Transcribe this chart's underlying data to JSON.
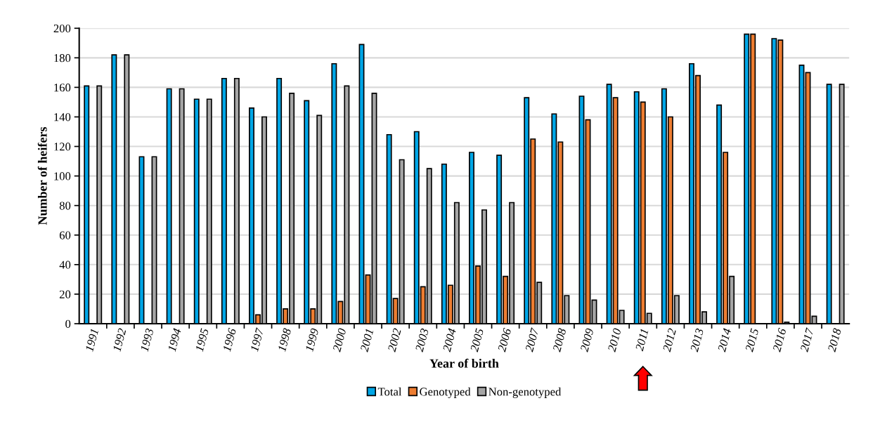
{
  "chart_data": {
    "type": "bar",
    "xlabel": "Year of birth",
    "ylabel": "Number of heifers",
    "categories": [
      "1991",
      "1992",
      "1993",
      "1994",
      "1995",
      "1996",
      "1997",
      "1998",
      "1999",
      "2000",
      "2001",
      "2002",
      "2003",
      "2004",
      "2005",
      "2006",
      "2007",
      "2008",
      "2009",
      "2010",
      "2011",
      "2012",
      "2013",
      "2014",
      "2015",
      "2016",
      "2017",
      "2018"
    ],
    "series": [
      {
        "name": "Total",
        "color": "#00a6e6",
        "values": [
          161,
          182,
          113,
          159,
          152,
          166,
          146,
          166,
          151,
          176,
          189,
          128,
          130,
          108,
          116,
          114,
          153,
          142,
          154,
          162,
          157,
          159,
          176,
          148,
          196,
          193,
          175,
          162
        ]
      },
      {
        "name": "Genotyped",
        "color": "#ed7d31",
        "values": [
          null,
          null,
          null,
          null,
          null,
          null,
          6,
          10,
          10,
          15,
          33,
          17,
          25,
          26,
          39,
          32,
          125,
          123,
          138,
          153,
          150,
          140,
          168,
          116,
          196,
          192,
          170,
          null
        ]
      },
      {
        "name": "Non-genotyped",
        "color": "#a6a6a6",
        "values": [
          161,
          182,
          113,
          159,
          152,
          166,
          140,
          156,
          141,
          161,
          156,
          111,
          105,
          82,
          77,
          82,
          28,
          19,
          16,
          9,
          7,
          19,
          8,
          32,
          null,
          1,
          5,
          162
        ]
      }
    ],
    "ylim": [
      0,
      200
    ],
    "yticks": [
      0,
      20,
      40,
      60,
      80,
      100,
      120,
      140,
      160,
      180,
      200
    ],
    "grid": "y",
    "legend": "bottom"
  }
}
